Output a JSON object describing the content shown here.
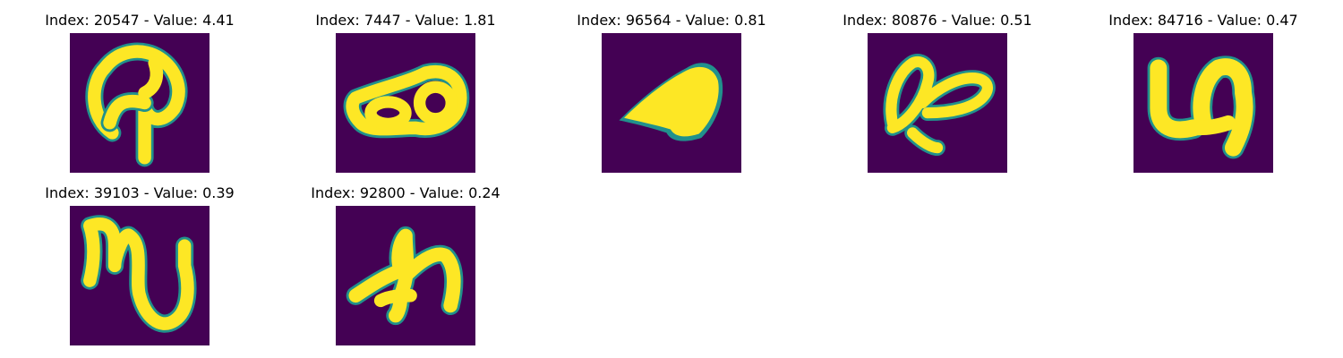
{
  "figure": {
    "background": "#ffffff",
    "colormap": "viridis",
    "panel_background": "#440154",
    "stroke_color": "#fde725",
    "edge_colors": [
      "#21918c",
      "#3b528b",
      "#5ec962"
    ],
    "panels": [
      {
        "title": "Index: 20547 - Value: 4.41",
        "index": 20547,
        "value": 4.41,
        "glyph": "looped-stroke-with-hook"
      },
      {
        "title": "Index: 7447 - Value: 1.81",
        "index": 7447,
        "value": 1.81,
        "glyph": "double-loop-horizontal"
      },
      {
        "title": "Index: 96564 - Value: 0.81",
        "index": 96564,
        "value": 0.81,
        "glyph": "filled-wedge"
      },
      {
        "title": "Index: 80876 - Value: 0.51",
        "index": 80876,
        "value": 0.51,
        "glyph": "two-ovals-slanted"
      },
      {
        "title": "Index: 84716 - Value: 0.47",
        "index": 84716,
        "value": 0.47,
        "glyph": "u-shape-with-loop"
      },
      {
        "title": "Index: 39103 - Value: 0.39",
        "index": 39103,
        "value": 0.39,
        "glyph": "n-with-tail"
      },
      {
        "title": "Index: 92800 - Value: 0.24",
        "index": 92800,
        "value": 0.24,
        "glyph": "h-like-stroke"
      }
    ]
  }
}
